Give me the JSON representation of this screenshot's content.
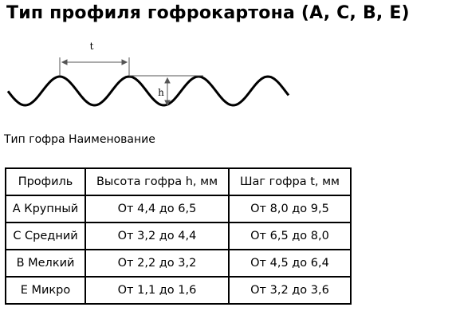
{
  "header": {
    "title": "Тип профиля гофрокартона (A, C, B, E)"
  },
  "diagram": {
    "pitch_label": "t",
    "height_label": "h"
  },
  "caption": "Тип гофра Наименование",
  "table": {
    "header": [
      "Профиль",
      "Высота гофра h, мм",
      "Шаг гофра t, мм"
    ],
    "rows": [
      [
        "А Крупный",
        "От 4,4 до 6,5",
        "От 8,0 до 9,5"
      ],
      [
        "С Средний",
        "От 3,2 до 4,4",
        "От 6,5 до 8,0"
      ],
      [
        "В Мелкий",
        "От 2,2 до 3,2",
        "От 4,5 до 6,4"
      ],
      [
        "Е Микро",
        "От 1,1 до 1,6",
        "От 3,2 до 3,6"
      ]
    ]
  }
}
